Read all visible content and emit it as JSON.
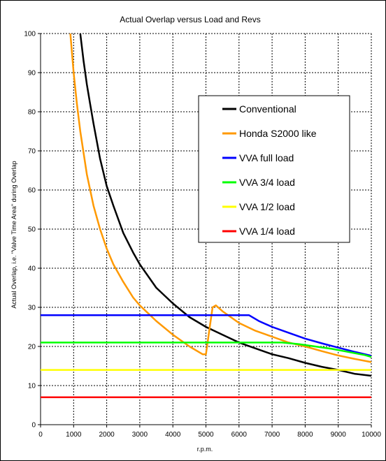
{
  "chart_data": {
    "type": "line",
    "title": "Actual Overlap versus Load and Revs",
    "xlabel": "r.p.m.",
    "ylabel": "Actual Overlap, i.e. \"Valve Time Area\" during Overlap",
    "xlim": [
      0,
      10000
    ],
    "ylim": [
      0,
      100
    ],
    "xticks": [
      0,
      1000,
      2000,
      3000,
      4000,
      5000,
      6000,
      7000,
      8000,
      9000,
      10000
    ],
    "yticks": [
      0,
      10,
      20,
      30,
      40,
      50,
      60,
      70,
      80,
      90,
      100
    ],
    "grid": true,
    "legend_position": "right",
    "series": [
      {
        "name": "Conventional",
        "color": "#000000",
        "x": [
          1200,
          1300,
          1400,
          1500,
          1600,
          1800,
          2000,
          2200,
          2500,
          2800,
          3000,
          3500,
          4000,
          4500,
          5000,
          5500,
          6000,
          6500,
          7000,
          7500,
          8000,
          8500,
          9000,
          9500,
          10000
        ],
        "y": [
          100,
          93,
          87,
          82,
          77,
          68,
          61,
          56,
          49,
          44,
          41,
          35,
          31,
          27.5,
          25,
          23,
          21,
          19.5,
          18,
          17,
          15.8,
          14.8,
          14,
          13,
          12.5
        ]
      },
      {
        "name": "Honda S2000 like",
        "color": "#ff9900",
        "x": [
          900,
          1000,
          1100,
          1200,
          1400,
          1600,
          1800,
          2000,
          2200,
          2500,
          2800,
          3000,
          3500,
          4000,
          4500,
          4900,
          5000,
          5100,
          5200,
          5300,
          5500,
          6000,
          6500,
          7000,
          7500,
          8000,
          8500,
          9000,
          9500,
          10000
        ],
        "y": [
          100,
          90,
          82,
          75,
          64,
          56,
          50,
          45,
          41,
          36.5,
          32.5,
          30.5,
          26.5,
          23,
          20,
          18,
          18,
          24,
          30,
          30.5,
          29,
          26,
          24,
          22.5,
          21,
          20,
          18.8,
          17.7,
          16.8,
          16
        ]
      },
      {
        "name": "VVA  full load",
        "color": "#0000ff",
        "x": [
          0,
          6300,
          6600,
          7000,
          7500,
          8000,
          8500,
          9000,
          9500,
          10000
        ],
        "y": [
          28,
          28,
          26.5,
          25,
          23.5,
          22,
          20.8,
          19.7,
          18.6,
          17.6
        ]
      },
      {
        "name": "VVA  3/4 load",
        "color": "#00ff00",
        "x": [
          0,
          7300,
          7800,
          8300,
          8800,
          9300,
          9800,
          10000
        ],
        "y": [
          21,
          21,
          20.6,
          20,
          19.4,
          18.6,
          17.8,
          17.3
        ]
      },
      {
        "name": "VVA  1/2 load",
        "color": "#ffff00",
        "x": [
          0,
          10000
        ],
        "y": [
          14,
          14
        ]
      },
      {
        "name": "VVA  1/4 load",
        "color": "#ff0000",
        "x": [
          0,
          10000
        ],
        "y": [
          7,
          7
        ]
      }
    ]
  }
}
